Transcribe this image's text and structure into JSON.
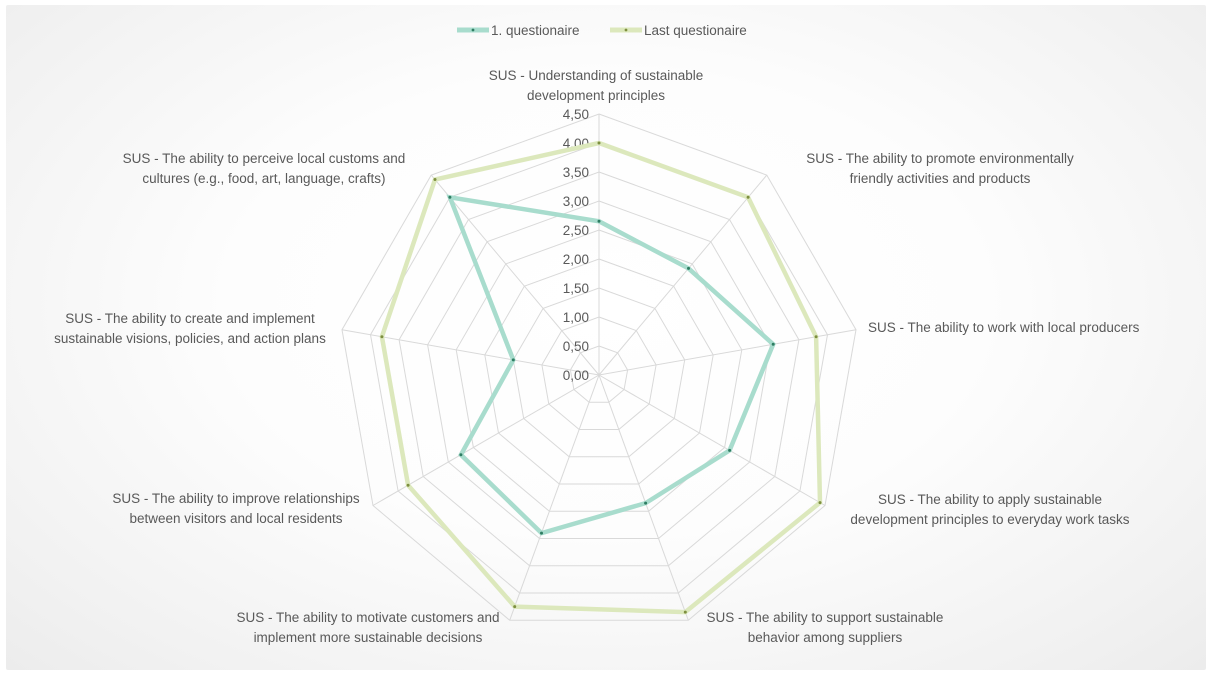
{
  "chart_data": {
    "type": "radar",
    "title": "",
    "categories": [
      "SUS - Understanding of sustainable development principles",
      "SUS - The ability to promote environmentally friendly activities and products",
      "SUS - The ability to work with local producers",
      "SUS - The ability to apply sustainable development principles to everyday work tasks",
      "SUS - The ability to support sustainable behavior among suppliers",
      "SUS - The ability to motivate customers and implement more sustainable decisions",
      "SUS - The ability to improve relationships between visitors and local residents",
      "SUS - The ability to create and implement sustainable visions, policies, and action plans",
      "SUS - The ability to perceive local customs and cultures (e.g., food, art, language, crafts)"
    ],
    "category_lines": [
      [
        "SUS - Understanding of sustainable",
        "development principles"
      ],
      [
        "SUS - The ability to promote environmentally",
        "friendly activities and products"
      ],
      [
        "SUS - The ability to work with local producers"
      ],
      [
        "SUS - The ability to apply sustainable",
        "development principles to everyday work tasks"
      ],
      [
        "SUS - The ability to support sustainable",
        "behavior among suppliers"
      ],
      [
        "SUS - The ability to motivate customers and",
        "implement more sustainable decisions"
      ],
      [
        "SUS - The ability to improve relationships",
        "between visitors and local residents"
      ],
      [
        "SUS - The ability to create and implement",
        "sustainable visions, policies, and action plans"
      ],
      [
        "SUS - The ability to perceive local customs and",
        "cultures (e.g., food, art, language, crafts)"
      ]
    ],
    "range": [
      0,
      4.5
    ],
    "ticks": [
      "0,00",
      "0,50",
      "1,00",
      "1,50",
      "2,00",
      "2,50",
      "3,00",
      "3,50",
      "4,00",
      "4,50"
    ],
    "grid": true,
    "legend_position": "top",
    "series": [
      {
        "name": "1. questionaire",
        "color": "#a8dccd",
        "values": [
          2.65,
          2.4,
          3.05,
          2.6,
          2.35,
          2.9,
          2.75,
          1.5,
          4.0
        ]
      },
      {
        "name": "Last questionaire",
        "color": "#dce8bc",
        "values": [
          4.0,
          4.0,
          3.8,
          4.4,
          4.35,
          4.25,
          3.8,
          3.8,
          4.4
        ]
      }
    ]
  }
}
